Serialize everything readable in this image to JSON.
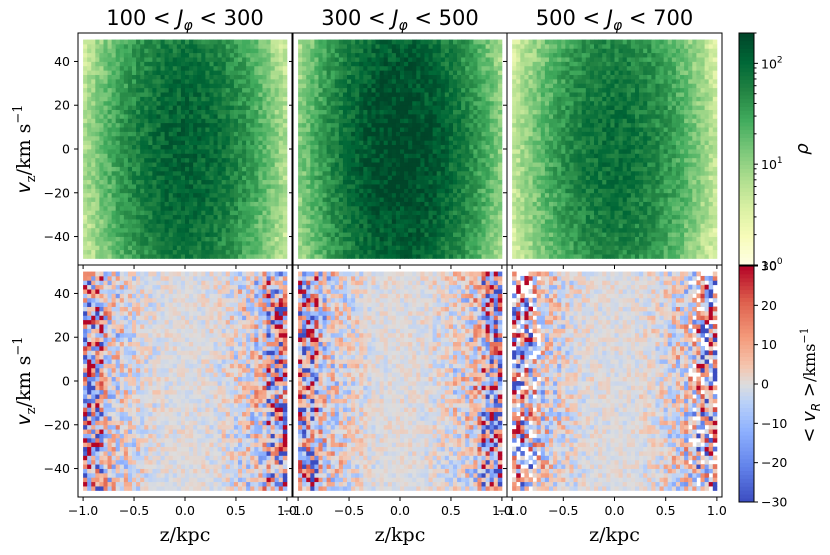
{
  "chart_data": {
    "type": "heatmap",
    "layout": "2 rows x 3 columns",
    "columns": [
      {
        "title": "100 < J_φ < 300",
        "title_parts": {
          "lo": "100",
          "hi": "300"
        },
        "amplitude": 120
      },
      {
        "title": "300 < J_φ < 500",
        "title_parts": {
          "lo": "300",
          "hi": "500"
        },
        "amplitude": 200
      },
      {
        "title": "500 < J_φ < 700",
        "title_parts": {
          "lo": "500",
          "hi": "700"
        },
        "amplitude": 90
      }
    ],
    "rows": [
      {
        "quantity": "density",
        "ylabel": "v_z/km s^-1",
        "ylim": [
          -53,
          53
        ],
        "colormap": "YlGn",
        "scale": "log",
        "colorbar": {
          "label": "ρ",
          "range": [
            1,
            200
          ],
          "ticks": [
            "10^0",
            "10^1",
            "10^2"
          ]
        }
      },
      {
        "quantity": "mean_vR",
        "ylabel": "v_z/km s^-1",
        "ylim": [
          -53,
          53
        ],
        "colormap": "coolwarm",
        "scale": "linear",
        "colorbar": {
          "label": "< v_R >/kms^-1",
          "range": [
            -30,
            30
          ],
          "ticks": [
            "−30",
            "−20",
            "−10",
            "0",
            "10",
            "20",
            "30"
          ]
        }
      }
    ],
    "x": {
      "label": "z/kpc",
      "range": [
        -1.05,
        1.05
      ],
      "ticks": [
        "−1.0",
        "−0.5",
        "0.0",
        "0.5",
        "1.0"
      ],
      "tick_values": [
        -1.0,
        -0.5,
        0.0,
        0.5,
        1.0
      ]
    },
    "y": {
      "ticks": [
        "−40",
        "−20",
        "0",
        "20",
        "40"
      ],
      "tick_values": [
        -40,
        -20,
        0,
        20,
        40
      ]
    },
    "bins": {
      "z": {
        "from": -1.0,
        "to": 1.0,
        "count": 50
      },
      "vz": {
        "from": -50,
        "to": 50,
        "count": 50
      }
    },
    "density_model": {
      "form": "peak at z=0, vz=0; falls off with |z|",
      "peak_per_bin": {
        "col1": 120,
        "col2": 200,
        "col3": 90
      }
    },
    "mean_vR_model": {
      "center": 0,
      "edge_noise_amplitude": 30
    }
  }
}
